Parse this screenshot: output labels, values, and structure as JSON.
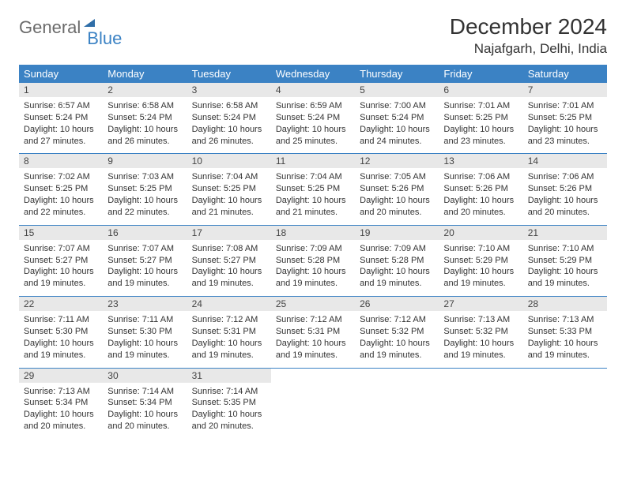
{
  "logo": {
    "word1": "General",
    "word2": "Blue"
  },
  "title": "December 2024",
  "location": "Najafgarh, Delhi, India",
  "colors": {
    "header_bg": "#3b82c4",
    "header_fg": "#ffffff",
    "daynum_bg": "#e8e8e8",
    "row_border": "#3b82c4",
    "text": "#333333",
    "logo_gray": "#6b6b6b",
    "logo_blue": "#3b82c4",
    "page_bg": "#ffffff"
  },
  "typography": {
    "title_fontsize": 28,
    "location_fontsize": 17,
    "weekday_fontsize": 13,
    "daynum_fontsize": 12,
    "body_fontsize": 11
  },
  "weekdays": [
    "Sunday",
    "Monday",
    "Tuesday",
    "Wednesday",
    "Thursday",
    "Friday",
    "Saturday"
  ],
  "weeks": [
    [
      {
        "n": "1",
        "sr": "6:57 AM",
        "ss": "5:24 PM",
        "dl": "10 hours and 27 minutes."
      },
      {
        "n": "2",
        "sr": "6:58 AM",
        "ss": "5:24 PM",
        "dl": "10 hours and 26 minutes."
      },
      {
        "n": "3",
        "sr": "6:58 AM",
        "ss": "5:24 PM",
        "dl": "10 hours and 26 minutes."
      },
      {
        "n": "4",
        "sr": "6:59 AM",
        "ss": "5:24 PM",
        "dl": "10 hours and 25 minutes."
      },
      {
        "n": "5",
        "sr": "7:00 AM",
        "ss": "5:24 PM",
        "dl": "10 hours and 24 minutes."
      },
      {
        "n": "6",
        "sr": "7:01 AM",
        "ss": "5:25 PM",
        "dl": "10 hours and 23 minutes."
      },
      {
        "n": "7",
        "sr": "7:01 AM",
        "ss": "5:25 PM",
        "dl": "10 hours and 23 minutes."
      }
    ],
    [
      {
        "n": "8",
        "sr": "7:02 AM",
        "ss": "5:25 PM",
        "dl": "10 hours and 22 minutes."
      },
      {
        "n": "9",
        "sr": "7:03 AM",
        "ss": "5:25 PM",
        "dl": "10 hours and 22 minutes."
      },
      {
        "n": "10",
        "sr": "7:04 AM",
        "ss": "5:25 PM",
        "dl": "10 hours and 21 minutes."
      },
      {
        "n": "11",
        "sr": "7:04 AM",
        "ss": "5:25 PM",
        "dl": "10 hours and 21 minutes."
      },
      {
        "n": "12",
        "sr": "7:05 AM",
        "ss": "5:26 PM",
        "dl": "10 hours and 20 minutes."
      },
      {
        "n": "13",
        "sr": "7:06 AM",
        "ss": "5:26 PM",
        "dl": "10 hours and 20 minutes."
      },
      {
        "n": "14",
        "sr": "7:06 AM",
        "ss": "5:26 PM",
        "dl": "10 hours and 20 minutes."
      }
    ],
    [
      {
        "n": "15",
        "sr": "7:07 AM",
        "ss": "5:27 PM",
        "dl": "10 hours and 19 minutes."
      },
      {
        "n": "16",
        "sr": "7:07 AM",
        "ss": "5:27 PM",
        "dl": "10 hours and 19 minutes."
      },
      {
        "n": "17",
        "sr": "7:08 AM",
        "ss": "5:27 PM",
        "dl": "10 hours and 19 minutes."
      },
      {
        "n": "18",
        "sr": "7:09 AM",
        "ss": "5:28 PM",
        "dl": "10 hours and 19 minutes."
      },
      {
        "n": "19",
        "sr": "7:09 AM",
        "ss": "5:28 PM",
        "dl": "10 hours and 19 minutes."
      },
      {
        "n": "20",
        "sr": "7:10 AM",
        "ss": "5:29 PM",
        "dl": "10 hours and 19 minutes."
      },
      {
        "n": "21",
        "sr": "7:10 AM",
        "ss": "5:29 PM",
        "dl": "10 hours and 19 minutes."
      }
    ],
    [
      {
        "n": "22",
        "sr": "7:11 AM",
        "ss": "5:30 PM",
        "dl": "10 hours and 19 minutes."
      },
      {
        "n": "23",
        "sr": "7:11 AM",
        "ss": "5:30 PM",
        "dl": "10 hours and 19 minutes."
      },
      {
        "n": "24",
        "sr": "7:12 AM",
        "ss": "5:31 PM",
        "dl": "10 hours and 19 minutes."
      },
      {
        "n": "25",
        "sr": "7:12 AM",
        "ss": "5:31 PM",
        "dl": "10 hours and 19 minutes."
      },
      {
        "n": "26",
        "sr": "7:12 AM",
        "ss": "5:32 PM",
        "dl": "10 hours and 19 minutes."
      },
      {
        "n": "27",
        "sr": "7:13 AM",
        "ss": "5:32 PM",
        "dl": "10 hours and 19 minutes."
      },
      {
        "n": "28",
        "sr": "7:13 AM",
        "ss": "5:33 PM",
        "dl": "10 hours and 19 minutes."
      }
    ],
    [
      {
        "n": "29",
        "sr": "7:13 AM",
        "ss": "5:34 PM",
        "dl": "10 hours and 20 minutes."
      },
      {
        "n": "30",
        "sr": "7:14 AM",
        "ss": "5:34 PM",
        "dl": "10 hours and 20 minutes."
      },
      {
        "n": "31",
        "sr": "7:14 AM",
        "ss": "5:35 PM",
        "dl": "10 hours and 20 minutes."
      },
      null,
      null,
      null,
      null
    ]
  ],
  "labels": {
    "sunrise": "Sunrise:",
    "sunset": "Sunset:",
    "daylight": "Daylight:"
  }
}
